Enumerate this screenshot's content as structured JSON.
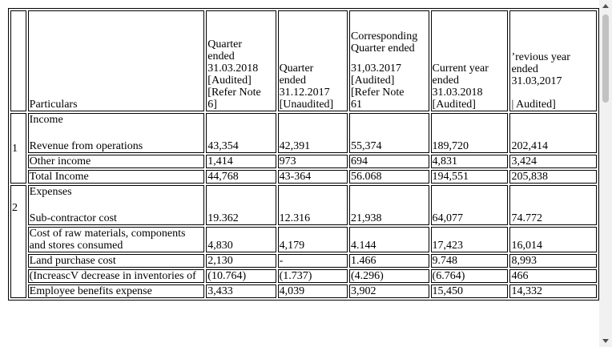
{
  "header": {
    "particulars": "Particulars",
    "col1": [
      "Quarter",
      "ended",
      "31.03.2018",
      "[Audited]",
      "[Refer Note",
      "6]"
    ],
    "col2": [
      "Quarter",
      "ended",
      "31.12.2017",
      "[Unaudited]"
    ],
    "col3": [
      "Corresponding",
      "Quarter ended",
      "",
      "31,03.2017",
      "[Audited]",
      "[Refer Note",
      "61"
    ],
    "col4": [
      "Current year",
      "ended",
      "31.03.2018",
      "[Audited]"
    ],
    "col5": [
      "’revious year",
      "ended",
      "31.03,2017",
      "",
      "| Audited]"
    ]
  },
  "sections": [
    {
      "number": "1",
      "title": "Income",
      "rows": [
        {
          "label": "Revenue from operations",
          "values": [
            "43,354",
            "42,391",
            "55,374",
            "189,720",
            "202,414"
          ]
        },
        {
          "label": "Other income",
          "values": [
            "1,414",
            "973",
            "694",
            "4,831",
            "3,424"
          ]
        },
        {
          "label": "Total Income",
          "values": [
            "44,768",
            "43-364",
            "56.068",
            "194,551",
            "205,838"
          ]
        }
      ]
    },
    {
      "number": "2",
      "title": "Expenses",
      "rows": [
        {
          "label": "Sub-contractor cost",
          "values": [
            "19.362",
            "12.316",
            "21,938",
            "64,077",
            "74.772"
          ]
        },
        {
          "label": "Cost of raw materials, components and stores consumed",
          "values": [
            "4,830",
            "4,179",
            "4.144",
            "17,423",
            "16,014"
          ]
        },
        {
          "label": "Land purchase cost",
          "values": [
            "2,130",
            "-",
            "1.466",
            "9.748",
            "8,993"
          ]
        },
        {
          "label": "(IncreascV decrease in inventories of",
          "values": [
            "(10.764)",
            "(1.737)",
            "(4.296)",
            "(6.764)",
            "466"
          ]
        },
        {
          "label": "Employee benefits expense",
          "values": [
            "3,433",
            "4,039",
            "3,902",
            "15,450",
            "14,332"
          ]
        }
      ]
    }
  ]
}
